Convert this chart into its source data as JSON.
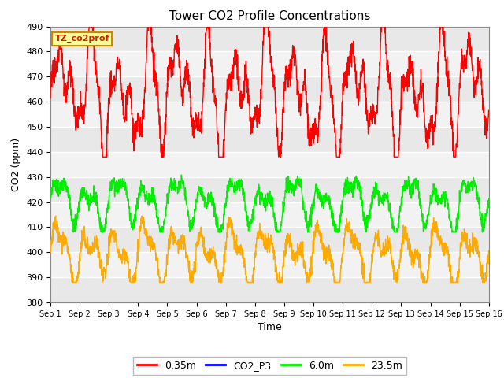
{
  "title": "Tower CO2 Profile Concentrations",
  "xlabel": "Time",
  "ylabel": "CO2 (ppm)",
  "ylim": [
    380,
    490
  ],
  "xlim": [
    0,
    15
  ],
  "xtick_labels": [
    "Sep 1",
    "Sep 2",
    "Sep 3",
    "Sep 4",
    "Sep 5",
    "Sep 6",
    "Sep 7",
    "Sep 8",
    "Sep 9",
    "Sep 10",
    "Sep 11",
    "Sep 12",
    "Sep 13",
    "Sep 14",
    "Sep 15",
    "Sep 16"
  ],
  "series": {
    "0.35m": {
      "color": "#ff0000",
      "linewidth": 1.0
    },
    "CO2_P3": {
      "color": "#0000ff",
      "linewidth": 1.0
    },
    "6.0m": {
      "color": "#00ee00",
      "linewidth": 1.0
    },
    "23.5m": {
      "color": "#ffaa00",
      "linewidth": 1.0
    }
  },
  "annotation_text": "TZ_co2prof",
  "annotation_box_facecolor": "#ffff99",
  "annotation_box_edgecolor": "#cc8800",
  "background_color": "#ffffff",
  "plot_background_color": "#e8e8e8",
  "band_color_light": "#f0f0f0",
  "band_color_dark": "#e0e0e0",
  "grid_color": "#ffffff",
  "n_points": 2000
}
